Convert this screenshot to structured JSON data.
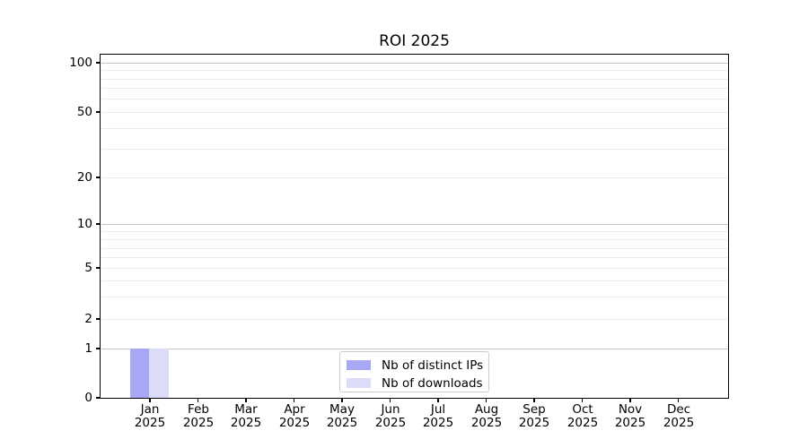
{
  "title": "ROI 2025",
  "legend": {
    "items": [
      {
        "label": "Nb of distinct IPs",
        "color": "#a8a8f4"
      },
      {
        "label": "Nb of downloads",
        "color": "#dcdcf8"
      }
    ]
  },
  "axes": {
    "y_ticks": [
      "100",
      "50",
      "20",
      "10",
      "5",
      "2",
      "1",
      "0"
    ],
    "x_ticks": [
      {
        "month": "Jan",
        "year": "2025"
      },
      {
        "month": "Feb",
        "year": "2025"
      },
      {
        "month": "Mar",
        "year": "2025"
      },
      {
        "month": "Apr",
        "year": "2025"
      },
      {
        "month": "May",
        "year": "2025"
      },
      {
        "month": "Jun",
        "year": "2025"
      },
      {
        "month": "Jul",
        "year": "2025"
      },
      {
        "month": "Aug",
        "year": "2025"
      },
      {
        "month": "Sep",
        "year": "2025"
      },
      {
        "month": "Oct",
        "year": "2025"
      },
      {
        "month": "Nov",
        "year": "2025"
      },
      {
        "month": "Dec",
        "year": "2025"
      }
    ]
  },
  "colors": {
    "bar_distinct_ips": "#a8a8f4",
    "bar_downloads": "#dcdcf8",
    "grid_major": "#c4c4c4",
    "grid_minor": "#ececec",
    "spine": "#000000",
    "legend_border": "#cccccc"
  },
  "chart_data": {
    "type": "bar",
    "title": "ROI 2025",
    "categories": [
      "Jan 2025",
      "Feb 2025",
      "Mar 2025",
      "Apr 2025",
      "May 2025",
      "Jun 2025",
      "Jul 2025",
      "Aug 2025",
      "Sep 2025",
      "Oct 2025",
      "Nov 2025",
      "Dec 2025"
    ],
    "series": [
      {
        "name": "Nb of distinct IPs",
        "color": "#a8a8f4",
        "values": [
          1,
          0,
          0,
          0,
          0,
          0,
          0,
          0,
          0,
          0,
          0,
          0
        ]
      },
      {
        "name": "Nb of downloads",
        "color": "#dcdcf8",
        "values": [
          1,
          0,
          0,
          0,
          0,
          0,
          0,
          0,
          0,
          0,
          0,
          0
        ]
      }
    ],
    "xlabel": "",
    "ylabel": "",
    "yscale": "symlog",
    "yticks": [
      0,
      1,
      2,
      5,
      10,
      20,
      50,
      100
    ],
    "ylim": [
      0,
      115
    ],
    "grid": "horizontal, major and minor log gridlines",
    "legend_position": "lower center"
  }
}
